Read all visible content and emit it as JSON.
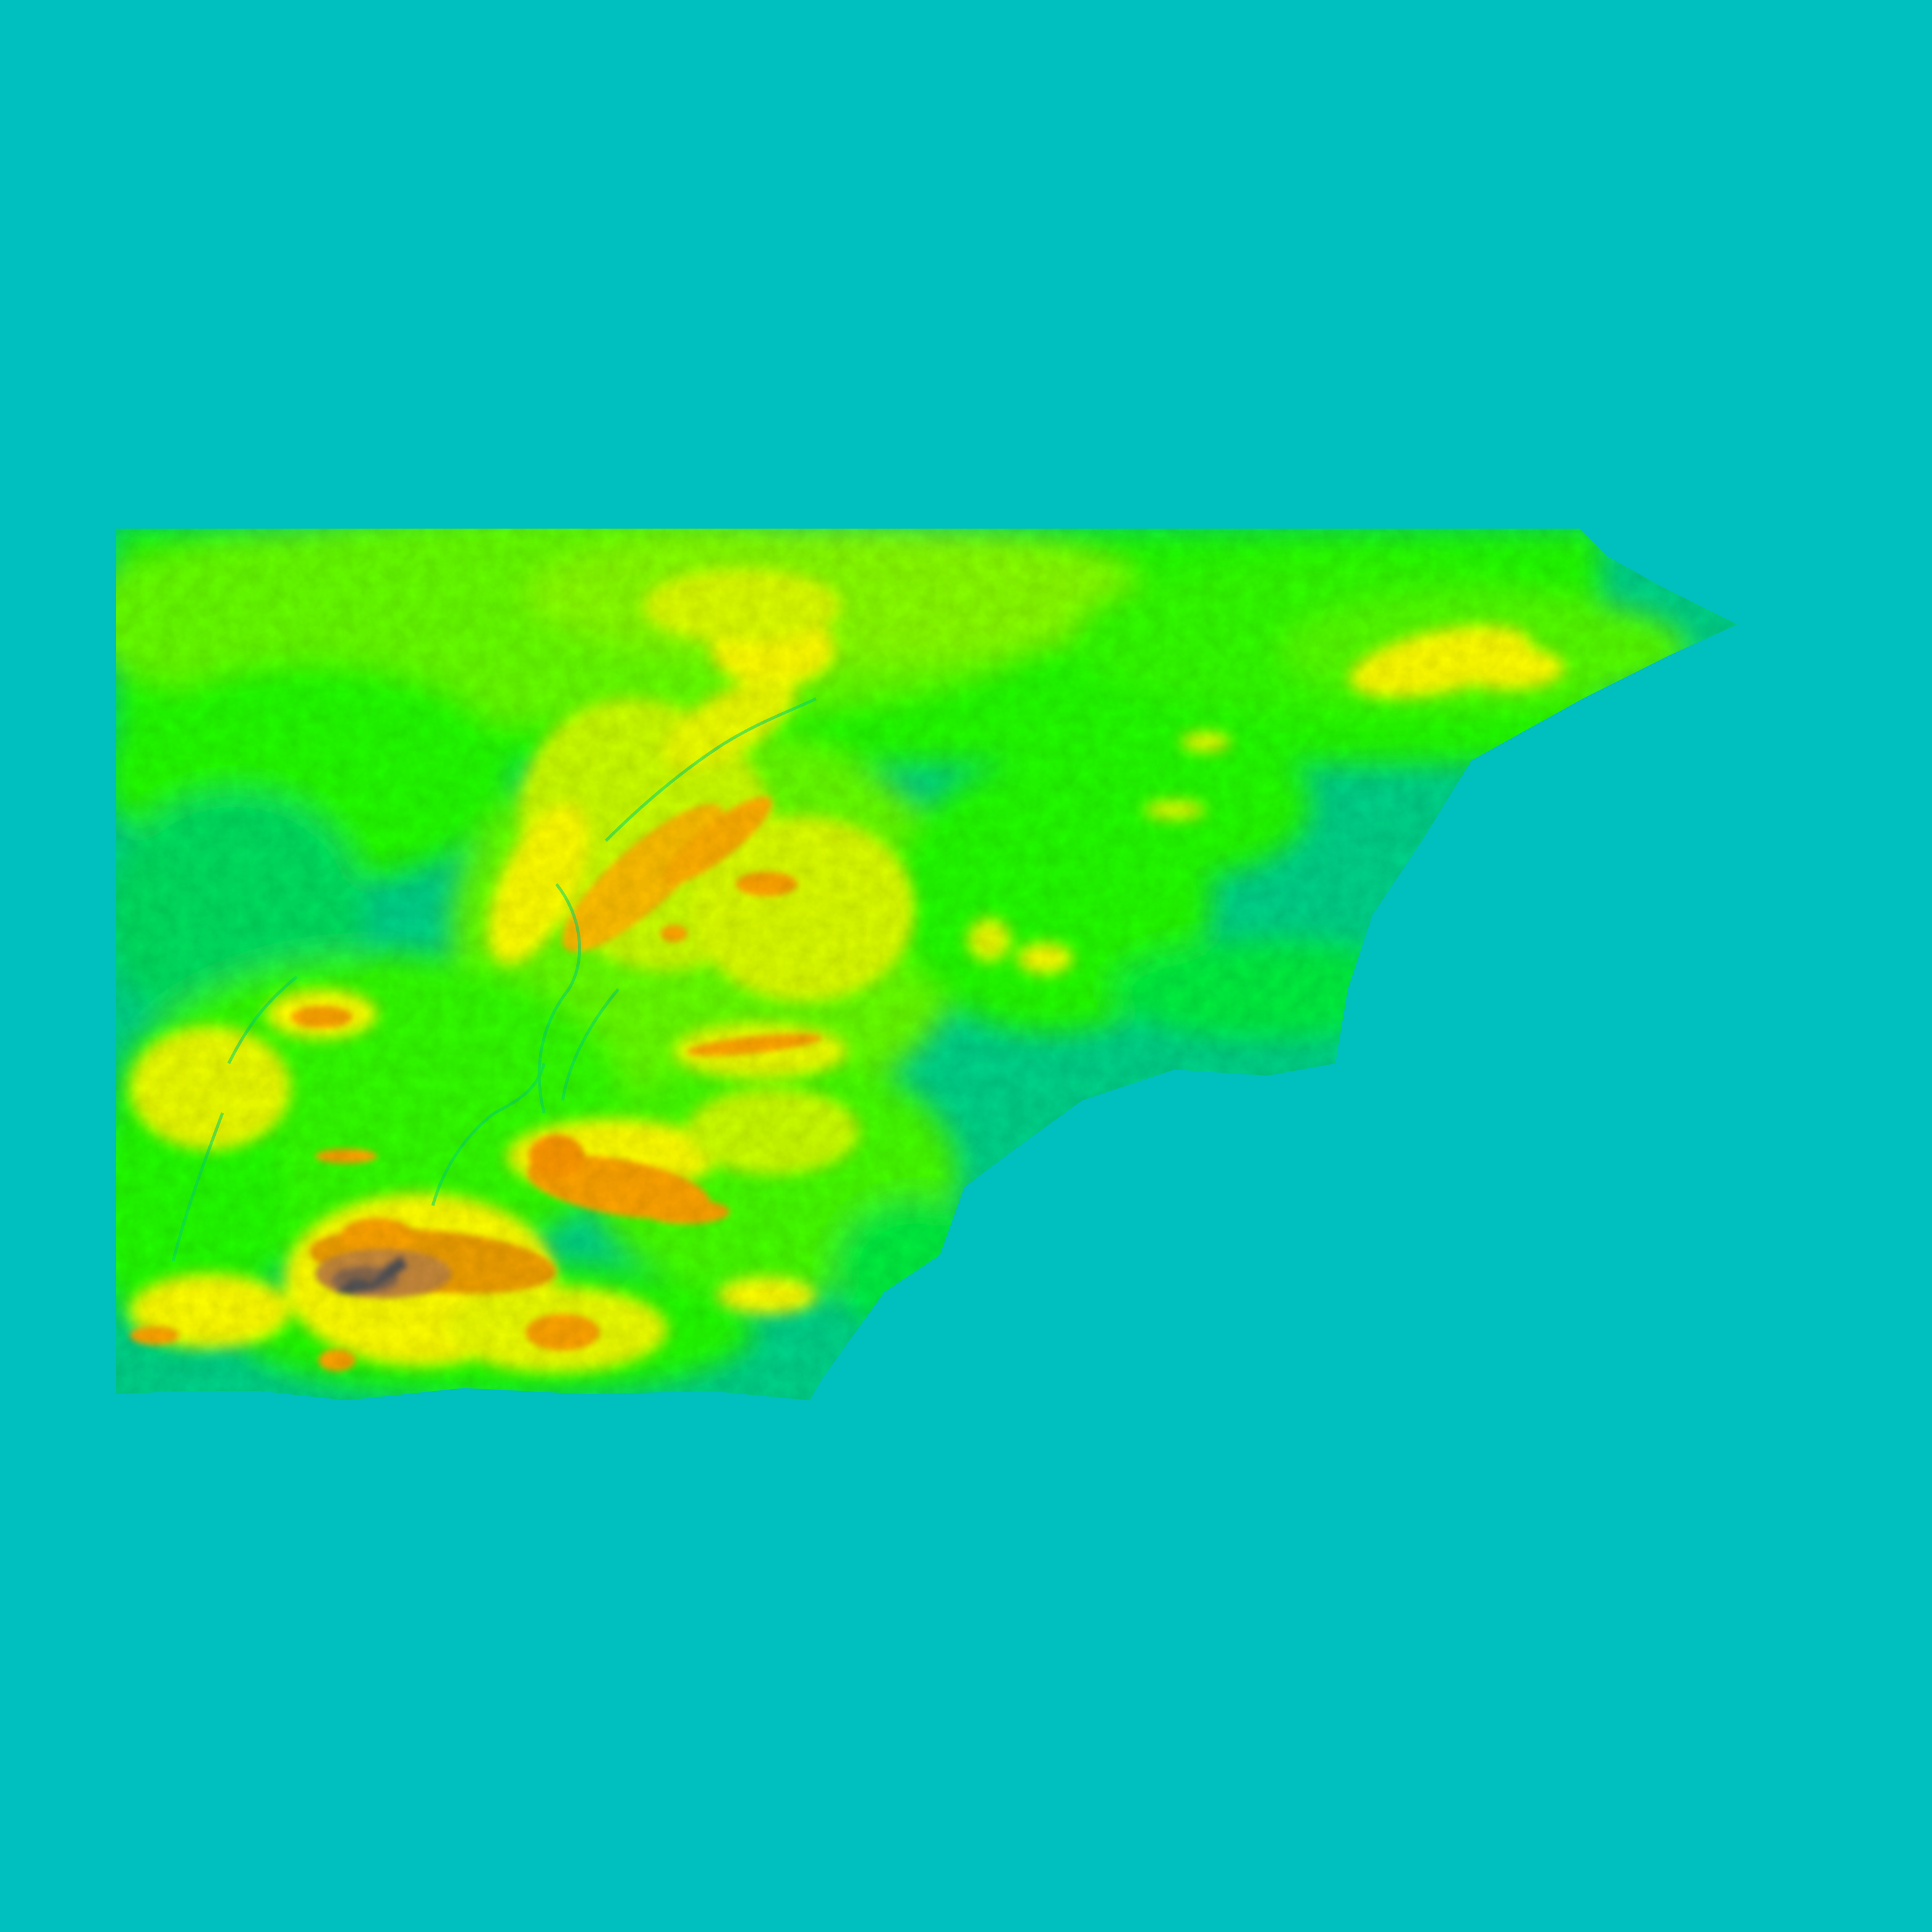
{
  "map": {
    "kind": "elevation-raster",
    "nodata_color": "#00BFBF",
    "color_ramp": [
      {
        "level": "lowest",
        "color": "#00C9A0"
      },
      {
        "level": "low",
        "color": "#00FF00"
      },
      {
        "level": "mid-low",
        "color": "#7FFF00"
      },
      {
        "level": "mid",
        "color": "#FFFF00"
      },
      {
        "level": "high",
        "color": "#FFA500"
      },
      {
        "level": "very-high",
        "color": "#C88A3A"
      },
      {
        "level": "highest",
        "color": "#555555"
      }
    ]
  }
}
